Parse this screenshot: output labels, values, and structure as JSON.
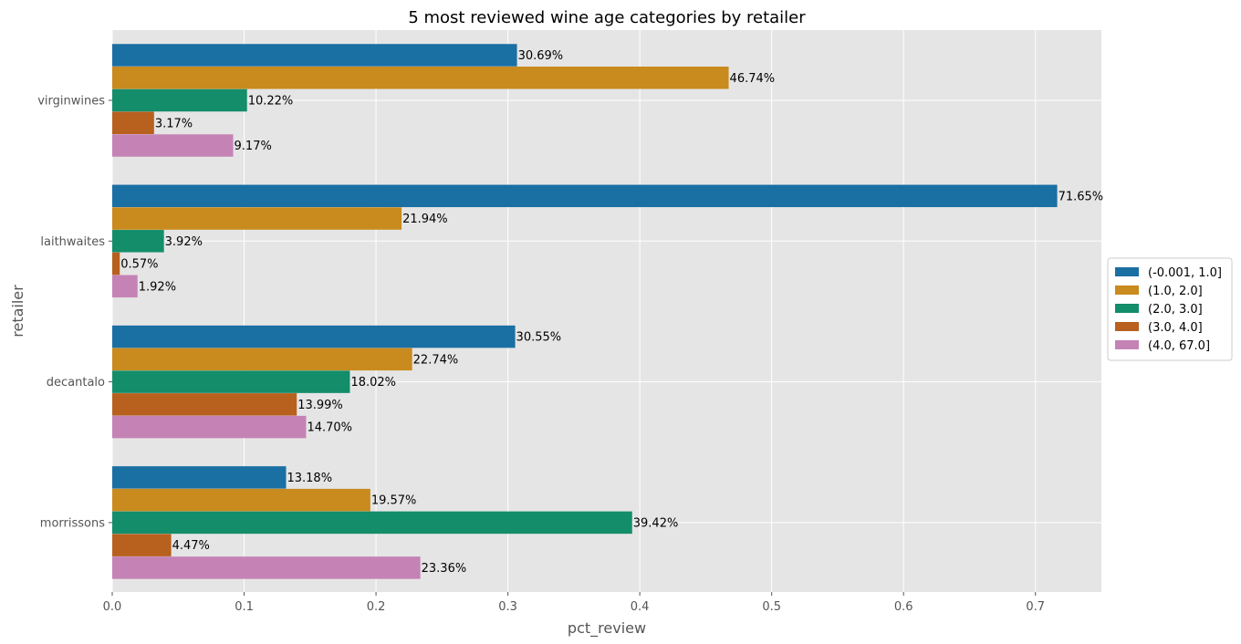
{
  "chart_data": {
    "type": "bar",
    "orientation": "horizontal",
    "title": "5 most reviewed wine age categories by retailer",
    "xlabel": "pct_review",
    "ylabel": "retailer",
    "xlim": [
      0,
      0.75
    ],
    "xticks": [
      "0.0",
      "0.1",
      "0.2",
      "0.3",
      "0.4",
      "0.5",
      "0.6",
      "0.7"
    ],
    "grid": true,
    "legend_position": "right-center",
    "categories": [
      "virginwines",
      "laithwaites",
      "decantalo",
      "morrissons"
    ],
    "series": [
      {
        "name": "(-0.001, 1.0]",
        "color": "#1a6fa3",
        "values": [
          0.3069,
          0.7165,
          0.3055,
          0.1318
        ],
        "labels": [
          "30.69%",
          "71.65%",
          "30.55%",
          "13.18%"
        ]
      },
      {
        "name": "(1.0, 2.0]",
        "color": "#c98a1e",
        "values": [
          0.4674,
          0.2194,
          0.2274,
          0.1957
        ],
        "labels": [
          "46.74%",
          "21.94%",
          "22.74%",
          "19.57%"
        ]
      },
      {
        "name": "(2.0, 3.0]",
        "color": "#138d6a",
        "values": [
          0.1022,
          0.0392,
          0.1802,
          0.3942
        ],
        "labels": [
          "10.22%",
          "3.92%",
          "18.02%",
          "39.42%"
        ]
      },
      {
        "name": "(3.0, 4.0]",
        "color": "#b8601e",
        "values": [
          0.0317,
          0.0057,
          0.1399,
          0.0447
        ],
        "labels": [
          "3.17%",
          "0.57%",
          "13.99%",
          "4.47%"
        ]
      },
      {
        "name": "(4.0, 67.0]",
        "color": "#c583b5",
        "values": [
          0.0917,
          0.0192,
          0.147,
          0.2336
        ],
        "labels": [
          "9.17%",
          "1.92%",
          "14.70%",
          "23.36%"
        ]
      }
    ]
  }
}
